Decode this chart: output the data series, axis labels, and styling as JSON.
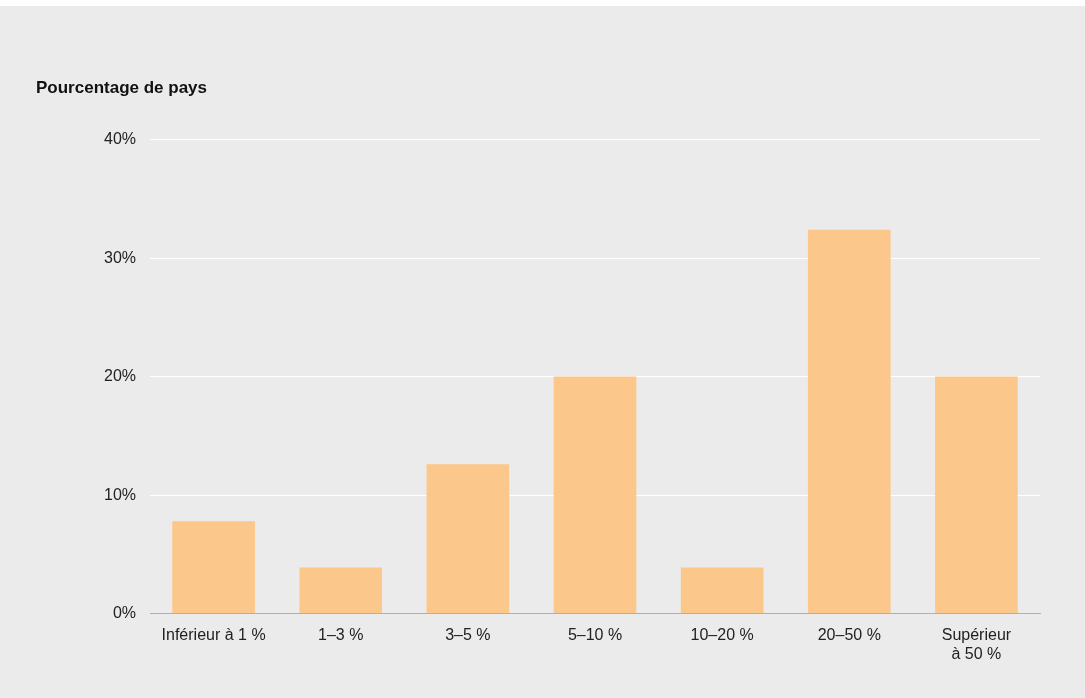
{
  "chart_data": {
    "type": "bar",
    "ylabel": "Pourcentage de pays",
    "categories": [
      "Inférieur à 1 %",
      "1–3 %",
      "3–5 %",
      "5–10 %",
      "10–20 %",
      "20–50 %",
      "Supérieur\nà 50 %"
    ],
    "values": [
      7.8,
      3.9,
      12.6,
      20.0,
      3.9,
      32.4,
      20.0
    ],
    "color": "#fbc78a",
    "ylim": [
      0,
      40
    ],
    "yticks": [
      {
        "value": 0,
        "label": "0%"
      },
      {
        "value": 10,
        "label": "10%"
      },
      {
        "value": 20,
        "label": "20%"
      },
      {
        "value": 30,
        "label": "30%"
      },
      {
        "value": 40,
        "label": "40%"
      }
    ],
    "grid": "y"
  }
}
